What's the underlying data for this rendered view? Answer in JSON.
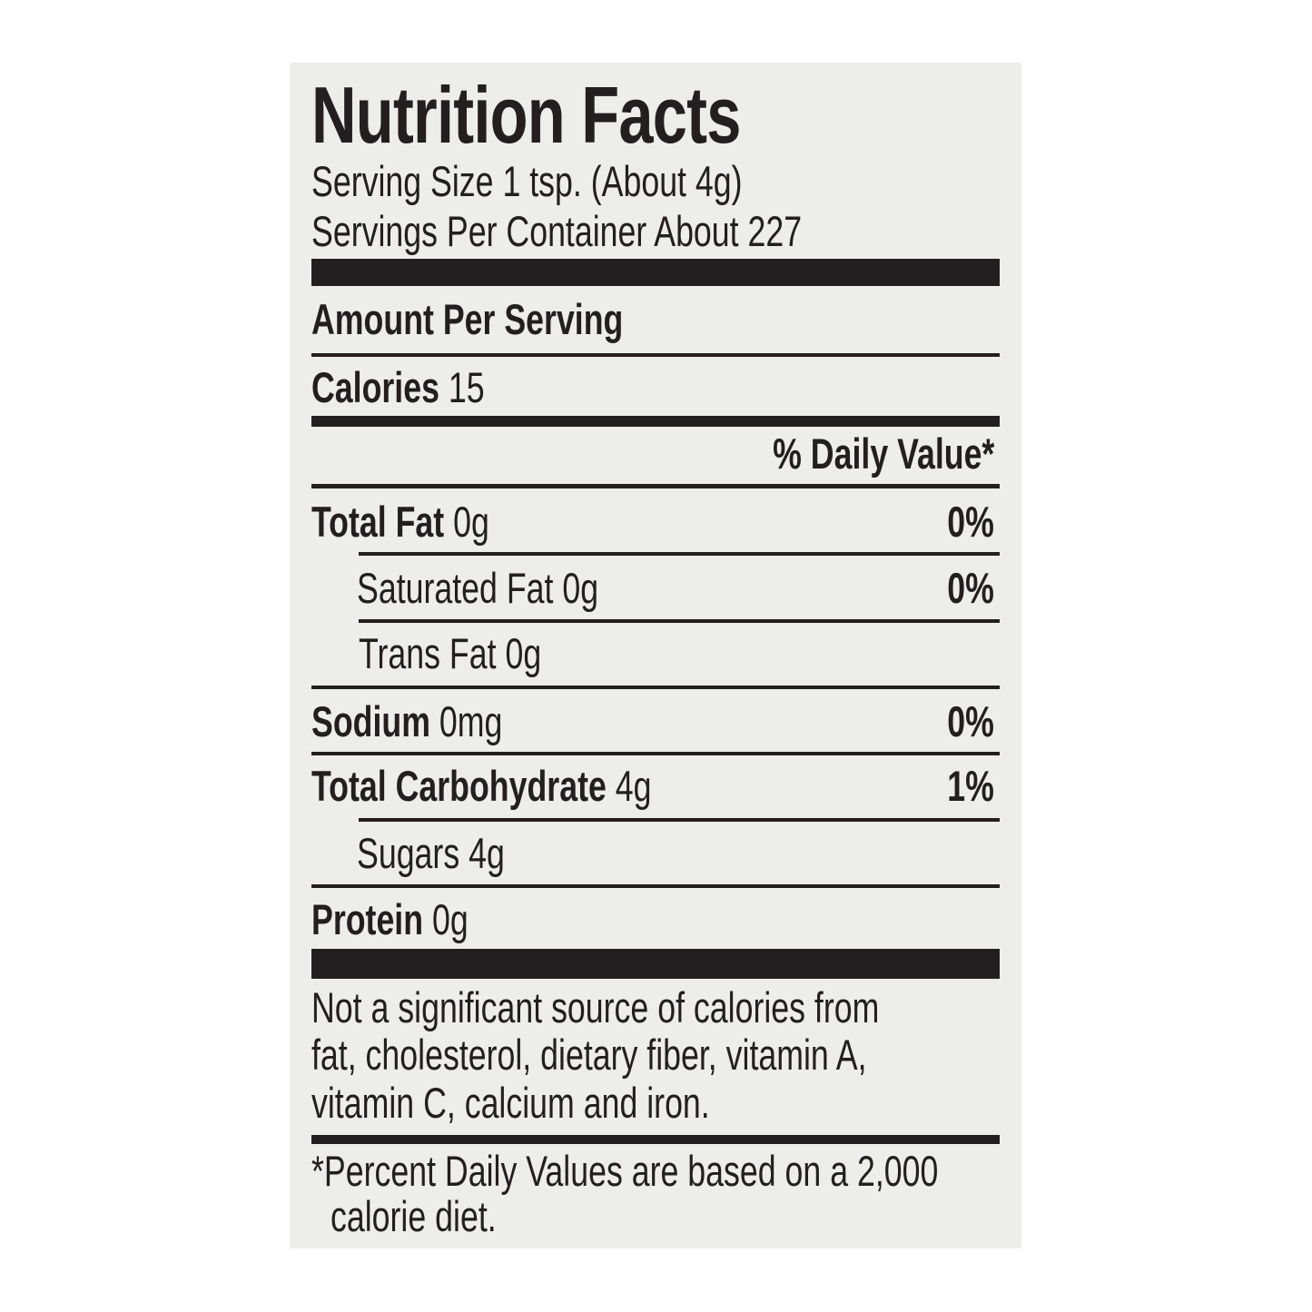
{
  "title": "Nutrition Facts",
  "serving_size": "Serving Size 1 tsp. (About 4g)",
  "servings_per_container": "Servings Per Container About 227",
  "amount_per_serving": "Amount Per Serving",
  "calories": {
    "label": "Calories",
    "value": "15"
  },
  "daily_value_header": "% Daily Value*",
  "nutrients": [
    {
      "label": "Total Fat",
      "amount": "0g",
      "dv": "0%"
    },
    {
      "label": "Saturated Fat",
      "amount": "0g",
      "dv": "0%"
    },
    {
      "label": "Trans Fat",
      "amount": "0g"
    },
    {
      "label": "Sodium",
      "amount": "0mg",
      "dv": "0%"
    },
    {
      "label": "Total Carbohydrate",
      "amount": "4g",
      "dv": "1%"
    },
    {
      "label": "Sugars",
      "amount": "4g"
    },
    {
      "label": "Protein",
      "amount": "0g"
    }
  ],
  "not_significant": [
    "Not a significant source of calories from",
    "fat, cholesterol, dietary fiber, vitamin A,",
    "vitamin C, calcium and iron."
  ],
  "footnote": [
    "*Percent Daily Values are based on a 2,000",
    "calorie diet."
  ],
  "colors": {
    "ink": "#231f20",
    "panel": "#ededeb"
  }
}
